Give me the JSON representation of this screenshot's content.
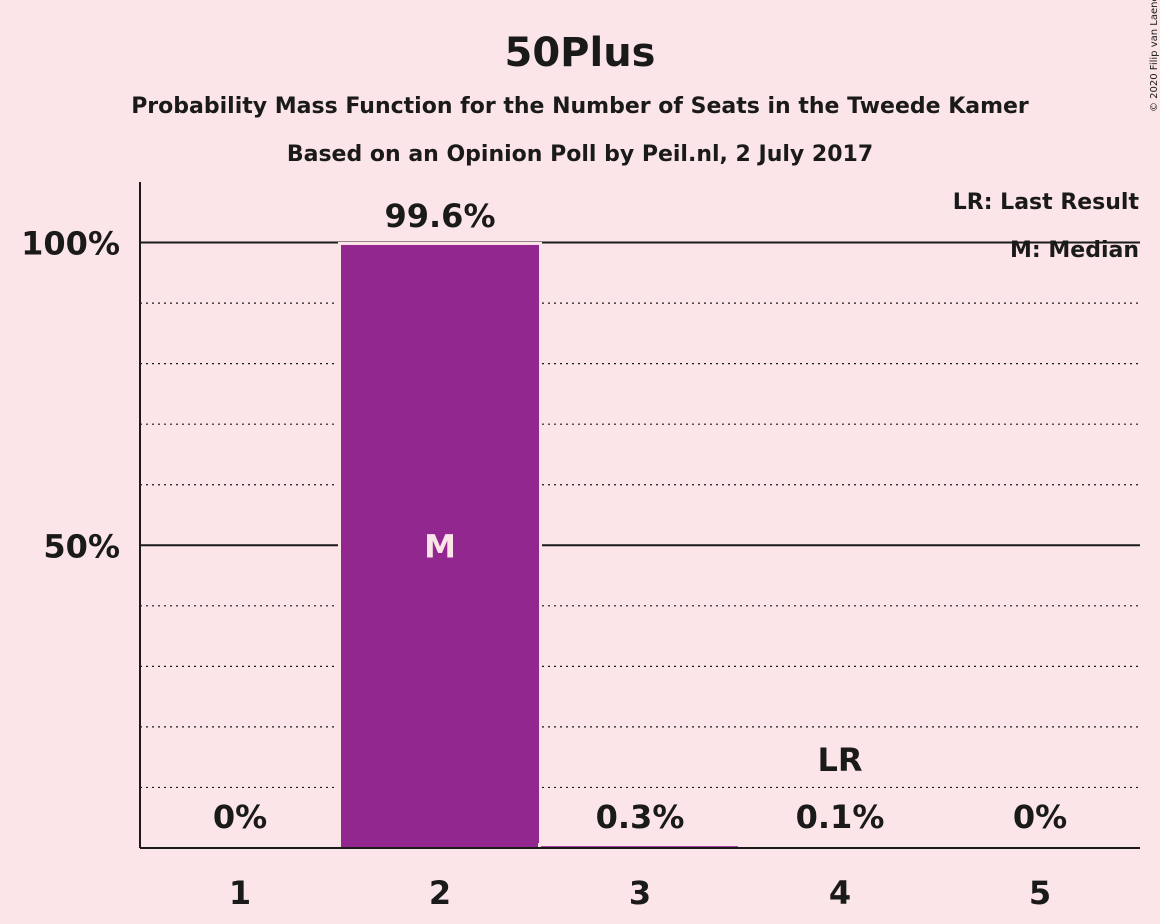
{
  "chart_data": {
    "type": "bar",
    "title": "50Plus",
    "subtitle": "Probability Mass Function for the Number of Seats in the Tweede Kamer",
    "subtitle2": "Based on an Opinion Poll by Peil.nl, 2 July 2017",
    "copyright": "© 2020 Filip van Laenen",
    "categories": [
      "1",
      "2",
      "3",
      "4",
      "5"
    ],
    "values": [
      0,
      99.6,
      0.3,
      0.1,
      0
    ],
    "value_labels": [
      "0%",
      "99.6%",
      "0.3%",
      "0.1%",
      "0%"
    ],
    "ylim": [
      0,
      110
    ],
    "ytick_values": [
      50,
      100
    ],
    "yticks": [
      "50%",
      "100%"
    ],
    "minor_grid_step": 10,
    "bar_color": "#92278f",
    "median_category": "2",
    "median_marker": "M",
    "last_result_category": "4",
    "last_result_marker": "LR",
    "legend": [
      "LR: Last Result",
      "M: Median"
    ],
    "legend_position": "top-right"
  }
}
